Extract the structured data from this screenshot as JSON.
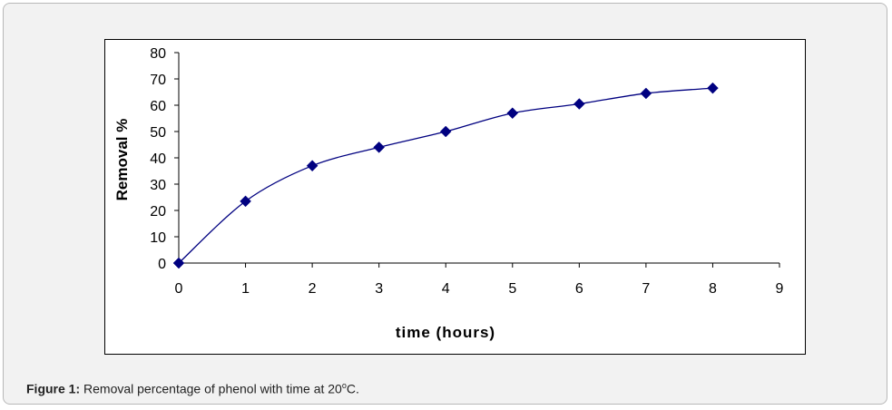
{
  "caption": {
    "label": "Figure 1:",
    "text_before": " Removal percentage of phenol with time at 20",
    "superscript": "o",
    "text_after": "C."
  },
  "chart_data": {
    "type": "line",
    "title": "",
    "xlabel": "time (hours)",
    "ylabel": "Removal %",
    "xlim": [
      0,
      9
    ],
    "ylim": [
      0,
      80
    ],
    "xticks": [
      "0",
      "1",
      "2",
      "3",
      "4",
      "5",
      "6",
      "7",
      "8",
      "9"
    ],
    "yticks": [
      "0",
      "10",
      "20",
      "30",
      "40",
      "50",
      "60",
      "70",
      "80"
    ],
    "grid": false,
    "legend": "none",
    "marker": "diamond",
    "color": "#000080",
    "series": [
      {
        "x": [
          0,
          1,
          2,
          3,
          4,
          5,
          6,
          7,
          8
        ],
        "values": [
          0,
          23.5,
          37,
          44,
          50,
          57,
          60.5,
          64.5,
          66.5
        ]
      }
    ]
  }
}
